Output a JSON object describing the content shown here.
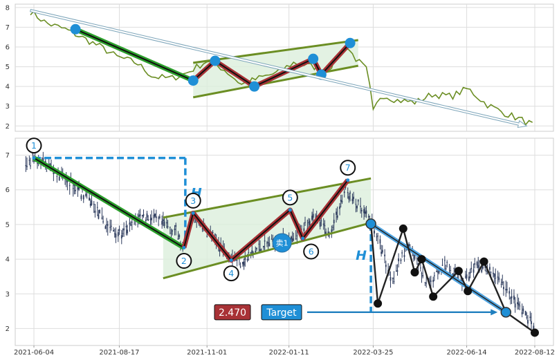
{
  "chart_data": [
    {
      "type": "line",
      "panel": "overview",
      "ylim": [
        1.8,
        8.1
      ],
      "yticks": [
        2,
        3,
        4,
        5,
        6,
        7,
        8
      ],
      "grid": true,
      "price_series": {
        "color": "#6b8e23",
        "x": [
          "2021-06-01",
          "2021-06-15",
          "2021-07-01",
          "2021-07-15",
          "2021-08-01",
          "2021-08-15",
          "2021-09-01",
          "2021-09-15",
          "2021-10-01",
          "2021-10-15",
          "2021-11-01",
          "2021-11-15",
          "2021-12-01",
          "2021-12-15",
          "2022-01-01",
          "2022-01-15",
          "2022-02-01",
          "2022-02-15",
          "2022-03-01",
          "2022-03-10",
          "2022-03-20",
          "2022-03-25",
          "2022-04-01",
          "2022-04-15",
          "2022-05-01",
          "2022-05-15",
          "2022-06-01",
          "2022-06-15",
          "2022-07-01",
          "2022-07-15",
          "2022-08-01",
          "2022-08-12"
        ],
        "y": [
          7.8,
          7.2,
          6.9,
          6.5,
          6.0,
          5.5,
          5.2,
          4.5,
          4.4,
          4.7,
          5.3,
          4.9,
          4.1,
          4.4,
          4.7,
          5.2,
          5.0,
          4.9,
          6.1,
          5.4,
          4.8,
          2.7,
          3.6,
          3.3,
          3.2,
          3.6,
          3.5,
          3.9,
          3.1,
          2.7,
          2.3,
          2.0
        ]
      },
      "pattern_points": {
        "x": [
          "2021-07-10",
          "2021-10-20",
          "2021-11-08",
          "2021-12-12",
          "2022-02-01",
          "2022-02-08",
          "2022-03-05"
        ],
        "y": [
          6.9,
          4.3,
          5.3,
          4.0,
          5.4,
          4.6,
          6.2
        ]
      },
      "channel_upper": [
        [
          "2021-10-20",
          5.2
        ],
        [
          "2022-03-12",
          6.35
        ]
      ],
      "channel_lower": [
        [
          "2021-10-20",
          3.45
        ],
        [
          "2022-03-12",
          5.05
        ]
      ],
      "trend_arrow": [
        [
          "2021-06-01",
          7.85
        ],
        [
          "2022-08-05",
          2.0
        ]
      ]
    },
    {
      "type": "candlestick",
      "panel": "main",
      "ylim": [
        1.55,
        7.45
      ],
      "yticks": [
        2,
        3,
        4,
        5,
        6,
        7
      ],
      "xticks": [
        "2021-06-04",
        "2021-08-17",
        "2021-11-01",
        "2022-01-11",
        "2022-03-25",
        "2022-06-14",
        "2022-08-12"
      ],
      "x_range": [
        "2021-05-20",
        "2022-08-27"
      ],
      "grid": true,
      "price_path": {
        "x": [
          "2021-05-28",
          "2021-06-04",
          "2021-06-20",
          "2021-07-05",
          "2021-07-20",
          "2021-08-05",
          "2021-08-20",
          "2021-09-05",
          "2021-09-20",
          "2021-10-05",
          "2021-10-12",
          "2021-10-19",
          "2021-11-01",
          "2021-11-15",
          "2021-12-01",
          "2021-12-15",
          "2022-01-01",
          "2022-01-15",
          "2022-02-01",
          "2022-02-15",
          "2022-03-01",
          "2022-03-15",
          "2022-03-25",
          "2022-04-10",
          "2022-04-25",
          "2022-05-10",
          "2022-05-25",
          "2022-06-10",
          "2022-06-25",
          "2022-07-10",
          "2022-07-25",
          "2022-08-12"
        ],
        "y": [
          6.6,
          6.9,
          6.6,
          6.2,
          5.8,
          5.0,
          4.7,
          5.3,
          5.1,
          4.8,
          4.3,
          5.2,
          4.8,
          4.3,
          3.9,
          4.3,
          4.6,
          4.5,
          5.3,
          4.7,
          6.0,
          5.4,
          5.0,
          3.4,
          4.5,
          3.2,
          3.9,
          3.4,
          3.8,
          3.5,
          2.8,
          2.0
        ]
      },
      "wave_points": [
        {
          "label": "1",
          "x": "2021-06-04",
          "y": 6.92
        },
        {
          "label": "2",
          "x": "2021-10-12",
          "y": 4.33
        },
        {
          "label": "3",
          "x": "2021-10-20",
          "y": 5.33
        },
        {
          "label": "4",
          "x": "2021-11-22",
          "y": 3.97
        },
        {
          "label": "5",
          "x": "2022-01-12",
          "y": 5.42
        },
        {
          "label": "6",
          "x": "2022-01-23",
          "y": 4.6
        },
        {
          "label": "7",
          "x": "2022-03-03",
          "y": 6.28
        }
      ],
      "channel_upper": [
        [
          "2021-09-24",
          5.2
        ],
        [
          "2022-03-23",
          6.33
        ]
      ],
      "channel_lower": [
        [
          "2021-09-24",
          3.45
        ],
        [
          "2022-03-23",
          5.05
        ]
      ],
      "projection_points": {
        "x": [
          "2022-03-23",
          "2022-03-29",
          "2022-04-20",
          "2022-04-30",
          "2022-05-06",
          "2022-05-16",
          "2022-06-07",
          "2022-06-15",
          "2022-06-29",
          "2022-07-18",
          "2022-08-12"
        ],
        "y": [
          5.02,
          2.72,
          4.88,
          3.62,
          4.0,
          2.92,
          3.66,
          3.08,
          3.93,
          2.47,
          1.88
        ]
      },
      "projection_line": [
        [
          "2022-03-23",
          5.02
        ],
        [
          "2022-07-18",
          2.47
        ]
      ],
      "h_marker_left": {
        "x": "2021-10-12",
        "y_top": 6.92,
        "y_bottom": 4.33,
        "label": "H"
      },
      "h_marker_right": {
        "x": "2022-03-23",
        "y_top": 5.02,
        "y_bottom": 2.47,
        "label": "H"
      },
      "sell_marker": {
        "label": "卖1",
        "x": "2022-01-05",
        "y": 4.47
      },
      "target_value": {
        "text": "2.470",
        "y": 2.47
      },
      "target_label": {
        "text": "Target"
      }
    }
  ],
  "colors": {
    "price_line": "#6b8e23",
    "channel": "#6b8e23",
    "channel_fill": "#dcefdc",
    "down_leg": "#2ca02c",
    "zigzag": "#a83236",
    "point": "#1f8fd6",
    "dashed": "#1f8fd6",
    "candle": "#2c3a5c",
    "projection_band": "#4ea3e0",
    "projection_line": "#222222",
    "target_value_bg": "#a83236",
    "target_label_bg": "#1f8fd6",
    "grid": "#dddddd",
    "frame": "#cccccc"
  }
}
